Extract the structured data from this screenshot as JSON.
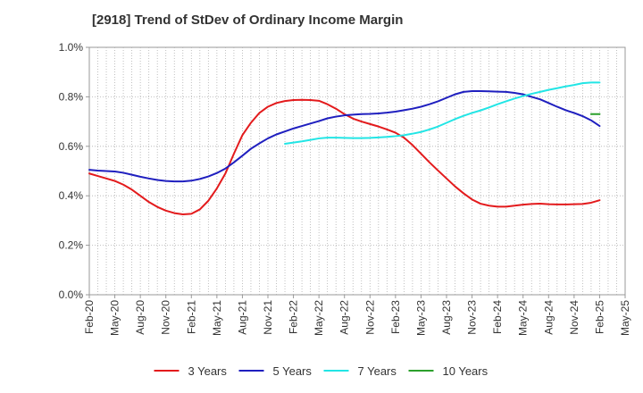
{
  "chart_data": {
    "type": "line",
    "title": "[2918]  Trend of StDev of Ordinary Income Margin",
    "xlabel": "",
    "ylabel": "",
    "x_ticks": [
      "Feb-20",
      "May-20",
      "Aug-20",
      "Nov-20",
      "Feb-21",
      "May-21",
      "Aug-21",
      "Nov-21",
      "Feb-22",
      "May-22",
      "Aug-22",
      "Nov-22",
      "Feb-23",
      "May-23",
      "Aug-23",
      "Nov-23",
      "Feb-24",
      "May-24",
      "Aug-24",
      "Nov-24",
      "Feb-25",
      "May-25"
    ],
    "y_ticks": [
      "0.0%",
      "0.2%",
      "0.4%",
      "0.6%",
      "0.8%",
      "1.0%"
    ],
    "ylim": [
      0,
      1.0
    ],
    "y_unit": "%",
    "grid": true,
    "legend_position": "bottom",
    "series": [
      {
        "name": "3 Years",
        "color": "#e31a1c",
        "x": [
          "2020-02",
          "2020-03",
          "2020-04",
          "2020-05",
          "2020-06",
          "2020-07",
          "2020-08",
          "2020-09",
          "2020-10",
          "2020-11",
          "2020-12",
          "2021-01",
          "2021-02",
          "2021-03",
          "2021-04",
          "2021-05",
          "2021-06",
          "2021-07",
          "2021-08",
          "2021-09",
          "2021-10",
          "2021-11",
          "2021-12",
          "2022-01",
          "2022-02",
          "2022-03",
          "2022-04",
          "2022-05",
          "2022-06",
          "2022-07",
          "2022-08",
          "2022-09",
          "2022-10",
          "2022-11",
          "2022-12",
          "2023-01",
          "2023-02",
          "2023-03",
          "2023-04",
          "2023-05",
          "2023-06",
          "2023-07",
          "2023-08",
          "2023-09",
          "2023-10",
          "2023-11",
          "2023-12",
          "2024-01",
          "2024-02",
          "2024-03",
          "2024-04",
          "2024-05",
          "2024-06",
          "2024-07",
          "2024-08",
          "2024-09",
          "2024-10",
          "2024-11",
          "2024-12",
          "2025-01",
          "2025-02"
        ],
        "values": [
          0.49,
          0.48,
          0.47,
          0.46,
          0.445,
          0.425,
          0.4,
          0.375,
          0.355,
          0.34,
          0.33,
          0.325,
          0.327,
          0.345,
          0.38,
          0.43,
          0.49,
          0.57,
          0.645,
          0.695,
          0.735,
          0.76,
          0.775,
          0.783,
          0.787,
          0.788,
          0.787,
          0.784,
          0.77,
          0.752,
          0.73,
          0.712,
          0.7,
          0.69,
          0.68,
          0.668,
          0.655,
          0.635,
          0.605,
          0.57,
          0.535,
          0.502,
          0.47,
          0.438,
          0.41,
          0.385,
          0.368,
          0.36,
          0.356,
          0.356,
          0.36,
          0.364,
          0.367,
          0.368,
          0.366,
          0.365,
          0.365,
          0.366,
          0.367,
          0.372,
          0.382
        ]
      },
      {
        "name": "5 Years",
        "color": "#1f1fbf",
        "x": [
          "2020-02",
          "2020-03",
          "2020-04",
          "2020-05",
          "2020-06",
          "2020-07",
          "2020-08",
          "2020-09",
          "2020-10",
          "2020-11",
          "2020-12",
          "2021-01",
          "2021-02",
          "2021-03",
          "2021-04",
          "2021-05",
          "2021-06",
          "2021-07",
          "2021-08",
          "2021-09",
          "2021-10",
          "2021-11",
          "2021-12",
          "2022-01",
          "2022-02",
          "2022-03",
          "2022-04",
          "2022-05",
          "2022-06",
          "2022-07",
          "2022-08",
          "2022-09",
          "2022-10",
          "2022-11",
          "2022-12",
          "2023-01",
          "2023-02",
          "2023-03",
          "2023-04",
          "2023-05",
          "2023-06",
          "2023-07",
          "2023-08",
          "2023-09",
          "2023-10",
          "2023-11",
          "2023-12",
          "2024-01",
          "2024-02",
          "2024-03",
          "2024-04",
          "2024-05",
          "2024-06",
          "2024-07",
          "2024-08",
          "2024-09",
          "2024-10",
          "2024-11",
          "2024-12",
          "2025-01",
          "2025-02"
        ],
        "values": [
          0.505,
          0.502,
          0.5,
          0.498,
          0.493,
          0.485,
          0.477,
          0.47,
          0.464,
          0.46,
          0.458,
          0.458,
          0.461,
          0.468,
          0.478,
          0.492,
          0.51,
          0.535,
          0.562,
          0.59,
          0.612,
          0.632,
          0.648,
          0.66,
          0.672,
          0.682,
          0.692,
          0.702,
          0.713,
          0.72,
          0.725,
          0.728,
          0.73,
          0.731,
          0.733,
          0.736,
          0.74,
          0.746,
          0.752,
          0.76,
          0.77,
          0.782,
          0.796,
          0.81,
          0.82,
          0.823,
          0.823,
          0.822,
          0.821,
          0.82,
          0.816,
          0.81,
          0.8,
          0.79,
          0.775,
          0.76,
          0.746,
          0.735,
          0.722,
          0.705,
          0.682
        ]
      },
      {
        "name": "7 Years",
        "color": "#22e5e5",
        "x": [
          "2022-01",
          "2022-02",
          "2022-03",
          "2022-04",
          "2022-05",
          "2022-06",
          "2022-07",
          "2022-08",
          "2022-09",
          "2022-10",
          "2022-11",
          "2022-12",
          "2023-01",
          "2023-02",
          "2023-03",
          "2023-04",
          "2023-05",
          "2023-06",
          "2023-07",
          "2023-08",
          "2023-09",
          "2023-10",
          "2023-11",
          "2023-12",
          "2024-01",
          "2024-02",
          "2024-03",
          "2024-04",
          "2024-05",
          "2024-06",
          "2024-07",
          "2024-08",
          "2024-09",
          "2024-10",
          "2024-11",
          "2024-12",
          "2025-01",
          "2025-02"
        ],
        "values": [
          0.61,
          0.615,
          0.62,
          0.626,
          0.632,
          0.635,
          0.635,
          0.634,
          0.633,
          0.633,
          0.634,
          0.636,
          0.638,
          0.641,
          0.645,
          0.651,
          0.658,
          0.668,
          0.68,
          0.695,
          0.71,
          0.723,
          0.735,
          0.745,
          0.757,
          0.77,
          0.782,
          0.793,
          0.803,
          0.812,
          0.82,
          0.828,
          0.835,
          0.842,
          0.848,
          0.855,
          0.858,
          0.858
        ]
      },
      {
        "name": "10 Years",
        "color": "#2ca02c",
        "x": [
          "2025-01",
          "2025-02"
        ],
        "values": [
          0.73,
          0.73
        ]
      }
    ]
  }
}
